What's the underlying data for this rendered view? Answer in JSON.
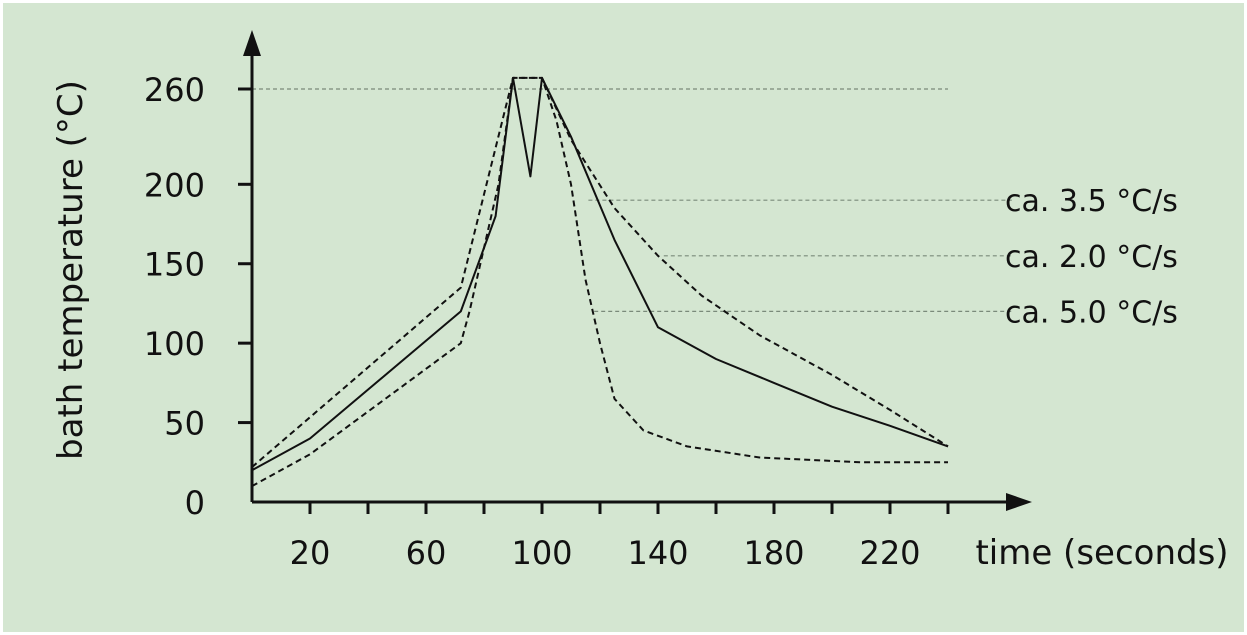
{
  "chart_data": {
    "type": "line",
    "xlabel": "time (seconds)",
    "ylabel": "bath temperature (°C)",
    "xlim": [
      0,
      240
    ],
    "ylim": [
      0,
      270
    ],
    "x_ticks": [
      20,
      60,
      100,
      140,
      180,
      220
    ],
    "x_minor_ticks": [
      40,
      80,
      120,
      160,
      200,
      240
    ],
    "y_ticks": [
      0,
      50,
      100,
      150,
      200,
      260
    ],
    "reference_lines": [
      {
        "y": 260,
        "x_from": 0,
        "x_to": 240
      },
      {
        "y": 190,
        "x_from": 116,
        "x_to": 262
      },
      {
        "y": 155,
        "x_from": 142,
        "x_to": 262
      },
      {
        "y": 120,
        "x_from": 118,
        "x_to": 262
      }
    ],
    "annotations": [
      {
        "text": "ca. 3.5 °C/s",
        "y": 190
      },
      {
        "text": "ca. 2.0 °C/s",
        "y": 155
      },
      {
        "text": "ca. 5.0 °C/s",
        "y": 120
      }
    ],
    "series": [
      {
        "style": "solid",
        "points": [
          [
            0,
            20
          ],
          [
            20,
            40
          ],
          [
            72,
            120
          ],
          [
            84,
            180
          ],
          [
            90,
            267
          ],
          [
            96,
            205
          ],
          [
            100,
            267
          ],
          [
            110,
            230
          ],
          [
            125,
            165
          ],
          [
            140,
            110
          ],
          [
            160,
            90
          ],
          [
            180,
            75
          ],
          [
            200,
            60
          ],
          [
            220,
            48
          ],
          [
            240,
            35
          ]
        ]
      },
      {
        "style": "dashed",
        "points": [
          [
            0,
            22
          ],
          [
            72,
            135
          ],
          [
            90,
            267
          ],
          [
            100,
            267
          ],
          [
            110,
            228
          ],
          [
            125,
            185
          ],
          [
            140,
            155
          ],
          [
            155,
            130
          ],
          [
            175,
            105
          ],
          [
            200,
            80
          ],
          [
            220,
            58
          ],
          [
            240,
            35
          ]
        ]
      },
      {
        "style": "dashed",
        "points": [
          [
            0,
            10
          ],
          [
            20,
            30
          ],
          [
            72,
            100
          ],
          [
            75,
            120
          ],
          [
            85,
            200
          ],
          [
            90,
            267
          ],
          [
            100,
            267
          ],
          [
            105,
            240
          ],
          [
            110,
            200
          ],
          [
            115,
            140
          ],
          [
            120,
            100
          ],
          [
            125,
            65
          ],
          [
            135,
            45
          ],
          [
            150,
            35
          ],
          [
            175,
            28
          ],
          [
            210,
            25
          ],
          [
            240,
            25
          ]
        ]
      }
    ]
  }
}
